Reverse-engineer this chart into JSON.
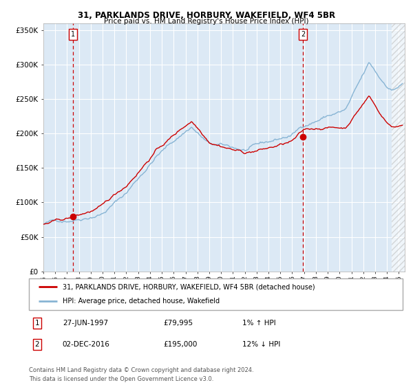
{
  "title1": "31, PARKLANDS DRIVE, HORBURY, WAKEFIELD, WF4 5BR",
  "title2": "Price paid vs. HM Land Registry's House Price Index (HPI)",
  "bg_color": "#dce9f5",
  "red_line_color": "#cc0000",
  "blue_line_color": "#87b4d4",
  "point1_date_num": 1997.49,
  "point1_price": 79995,
  "point2_date_num": 2016.92,
  "point2_price": 195000,
  "xmin": 1995.0,
  "xmax": 2025.5,
  "ymin": 0,
  "ymax": 360000,
  "yticks": [
    0,
    50000,
    100000,
    150000,
    200000,
    250000,
    300000,
    350000
  ],
  "ytick_labels": [
    "£0",
    "£50K",
    "£100K",
    "£150K",
    "£200K",
    "£250K",
    "£300K",
    "£350K"
  ],
  "legend1_label": "31, PARKLANDS DRIVE, HORBURY, WAKEFIELD, WF4 5BR (detached house)",
  "legend2_label": "HPI: Average price, detached house, Wakefield",
  "note1_date": "27-JUN-1997",
  "note1_price": "£79,995",
  "note1_hpi": "1% ↑ HPI",
  "note2_date": "02-DEC-2016",
  "note2_price": "£195,000",
  "note2_hpi": "12% ↓ HPI",
  "footer": "Contains HM Land Registry data © Crown copyright and database right 2024.\nThis data is licensed under the Open Government Licence v3.0.",
  "hatch_start": 2024.42
}
